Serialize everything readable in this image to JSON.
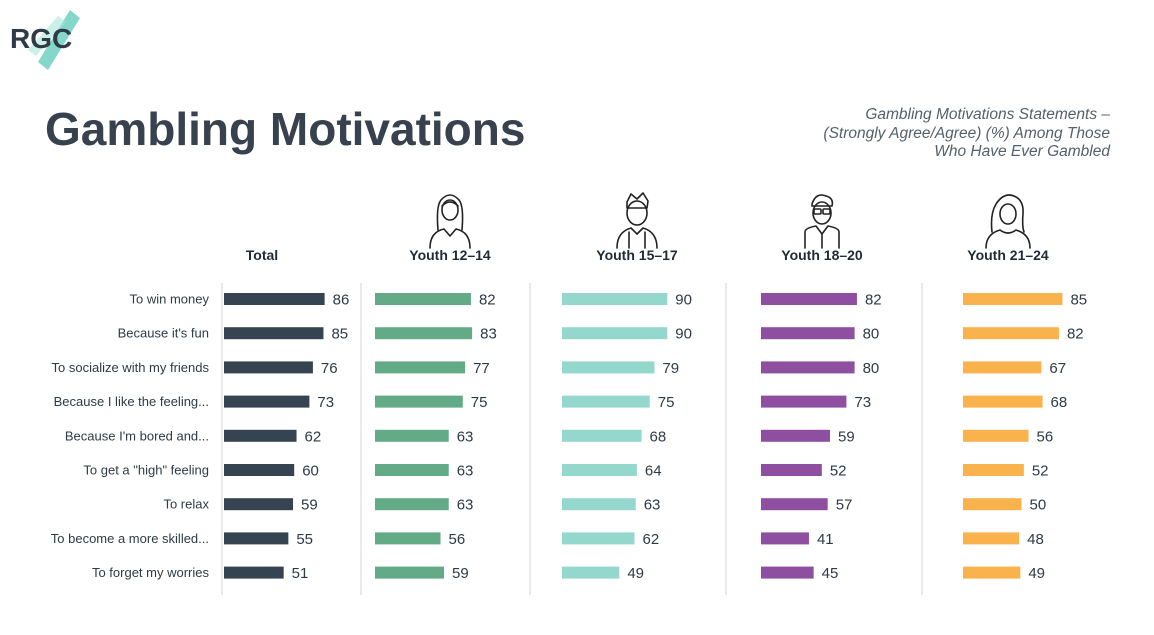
{
  "brand": {
    "logo_text": "RGC",
    "accent": "#5cc9b8",
    "text_color": "#2e3a46"
  },
  "header": {
    "title": "Gambling Motivations",
    "subtitle_lines": [
      "Gambling Motivations Statements –",
      "(Strongly Agree/Agree) (%) Among Those",
      "Who Have Ever Gambled"
    ]
  },
  "chart_data": {
    "type": "bar",
    "orientation": "horizontal",
    "title": "Gambling Motivations",
    "subtitle": "Gambling Motivations Statements – (Strongly Agree/Agree) (%) Among Those Who Have Ever Gambled",
    "categories": [
      "To win money",
      "Because it's fun",
      "To socialize with my friends",
      "Because I like the feeling...",
      "Because I'm bored and...",
      "To get a \"high\" feeling",
      "To relax",
      "To become a more skilled...",
      "To forget my worries"
    ],
    "series": [
      {
        "name": "Total",
        "color": "#364350",
        "icon": "none",
        "values": [
          86,
          85,
          76,
          73,
          62,
          60,
          59,
          55,
          51
        ]
      },
      {
        "name": "Youth 12-14",
        "color": "#62ab86",
        "icon": "girl-icon",
        "values": [
          82,
          83,
          77,
          75,
          63,
          63,
          63,
          56,
          59
        ]
      },
      {
        "name": "Youth 15-17",
        "color": "#94d7cd",
        "icon": "boy-icon",
        "values": [
          90,
          90,
          79,
          75,
          68,
          64,
          63,
          62,
          49
        ]
      },
      {
        "name": "Youth 18-20",
        "color": "#8e4fa0",
        "icon": "young-man-icon",
        "values": [
          82,
          80,
          80,
          73,
          59,
          52,
          57,
          41,
          45
        ]
      },
      {
        "name": "Youth 21-24",
        "color": "#f9b24c",
        "icon": "woman-icon",
        "values": [
          85,
          82,
          67,
          68,
          56,
          52,
          50,
          48,
          49
        ]
      }
    ],
    "xlim": [
      0,
      100
    ],
    "legend": "column headers"
  }
}
